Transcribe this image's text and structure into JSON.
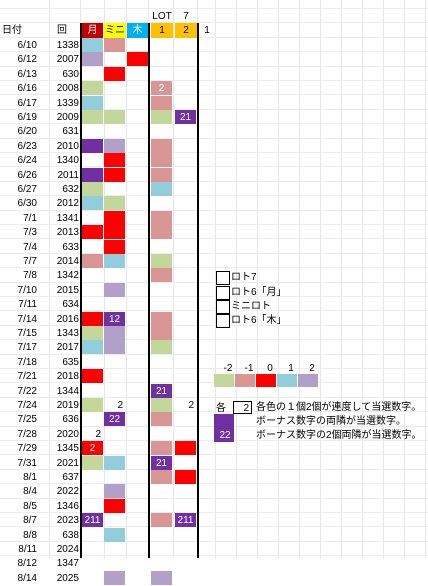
{
  "header": {
    "lot_label": "LOT",
    "lot_value": "7",
    "date_col": "日付",
    "round_col": "回",
    "cols": [
      {
        "label": "月",
        "bg": "#c00000",
        "fg": "#ffffff"
      },
      {
        "label": "ミニ",
        "bg": "#ffff00",
        "fg": "#000000"
      },
      {
        "label": "木",
        "bg": "#00b0f0",
        "fg": "#ffffff"
      },
      {
        "label": "1",
        "bg": "#ffc000",
        "fg": "#000000"
      },
      {
        "label": "2",
        "bg": "#ffc000",
        "fg": "#000000"
      }
    ],
    "extra": "1"
  },
  "palette": {
    "-2": "#c4d79b",
    "-1": "#da9694",
    "0": "#ff0000",
    "1": "#92cddc",
    "2": "#b1a0c7",
    "22": "#7030a0",
    "p": "#7030a0"
  },
  "rows": [
    {
      "date": "6/10",
      "num": "1338",
      "c": [
        [
          "1",
          ""
        ],
        [
          "-1",
          ""
        ],
        [
          "",
          ""
        ],
        [
          "",
          ""
        ],
        [
          "",
          ""
        ]
      ]
    },
    {
      "date": "6/12",
      "num": "2007",
      "c": [
        [
          "2",
          ""
        ],
        [
          "",
          ""
        ],
        [
          "0",
          ""
        ],
        [
          "",
          ""
        ],
        [
          "",
          ""
        ]
      ]
    },
    {
      "date": "6/13",
      "num": "630",
      "c": [
        [
          "",
          ""
        ],
        [
          "0",
          ""
        ],
        [
          "",
          ""
        ],
        [
          "",
          ""
        ],
        [
          "",
          ""
        ]
      ]
    },
    {
      "date": "6/16",
      "num": "2008",
      "c": [
        [
          "-2",
          ""
        ],
        [
          "",
          ""
        ],
        [
          "",
          ""
        ],
        [
          "-1",
          "2"
        ],
        [
          "",
          ""
        ]
      ]
    },
    {
      "date": "6/17",
      "num": "1339",
      "c": [
        [
          "1",
          ""
        ],
        [
          "",
          ""
        ],
        [
          "",
          ""
        ],
        [
          "-1",
          ""
        ],
        [
          "",
          ""
        ]
      ]
    },
    {
      "date": "6/19",
      "num": "2009",
      "c": [
        [
          "-2",
          ""
        ],
        [
          "-2",
          ""
        ],
        [
          "",
          ""
        ],
        [
          "-2",
          ""
        ],
        [
          "22",
          "21"
        ]
      ]
    },
    {
      "date": "6/20",
      "num": "631",
      "c": [
        [
          "",
          ""
        ],
        [
          "",
          ""
        ],
        [
          "",
          ""
        ],
        [
          "",
          ""
        ],
        [
          "",
          ""
        ]
      ]
    },
    {
      "date": "6/23",
      "num": "2010",
      "c": [
        [
          "22",
          ""
        ],
        [
          "2",
          ""
        ],
        [
          "",
          ""
        ],
        [
          "-1",
          ""
        ],
        [
          "",
          ""
        ]
      ]
    },
    {
      "date": "6/24",
      "num": "1340",
      "c": [
        [
          "",
          ""
        ],
        [
          "0",
          ""
        ],
        [
          "",
          ""
        ],
        [
          "-1",
          ""
        ],
        [
          "",
          ""
        ]
      ]
    },
    {
      "date": "6/26",
      "num": "2011",
      "c": [
        [
          "22",
          ""
        ],
        [
          "0",
          ""
        ],
        [
          "",
          ""
        ],
        [
          "-1",
          ""
        ],
        [
          "",
          ""
        ]
      ]
    },
    {
      "date": "6/27",
      "num": "632",
      "c": [
        [
          "-2",
          ""
        ],
        [
          "",
          ""
        ],
        [
          "",
          ""
        ],
        [
          "1",
          ""
        ],
        [
          "",
          ""
        ]
      ]
    },
    {
      "date": "6/30",
      "num": "2012",
      "c": [
        [
          "1",
          ""
        ],
        [
          "-2",
          ""
        ],
        [
          "",
          ""
        ],
        [
          "",
          ""
        ],
        [
          "",
          ""
        ]
      ]
    },
    {
      "date": "7/1",
      "num": "1341",
      "c": [
        [
          "",
          ""
        ],
        [
          "0",
          ""
        ],
        [
          "",
          ""
        ],
        [
          "-1",
          ""
        ],
        [
          "",
          ""
        ]
      ]
    },
    {
      "date": "7/3",
      "num": "2013",
      "c": [
        [
          "0",
          ""
        ],
        [
          "0",
          ""
        ],
        [
          "",
          ""
        ],
        [
          "-1",
          ""
        ],
        [
          "",
          ""
        ]
      ]
    },
    {
      "date": "7/4",
      "num": "633",
      "c": [
        [
          "",
          ""
        ],
        [
          "0",
          ""
        ],
        [
          "",
          ""
        ],
        [
          "",
          ""
        ],
        [
          "",
          ""
        ]
      ]
    },
    {
      "date": "7/7",
      "num": "2014",
      "c": [
        [
          "-1",
          ""
        ],
        [
          "1",
          ""
        ],
        [
          "",
          ""
        ],
        [
          "-2",
          ""
        ],
        [
          "",
          ""
        ]
      ]
    },
    {
      "date": "7/8",
      "num": "1342",
      "c": [
        [
          "",
          ""
        ],
        [
          "",
          ""
        ],
        [
          "",
          ""
        ],
        [
          "-1",
          ""
        ],
        [
          "",
          ""
        ]
      ]
    },
    {
      "date": "7/10",
      "num": "2015",
      "c": [
        [
          "",
          ""
        ],
        [
          "2",
          ""
        ],
        [
          "",
          ""
        ],
        [
          "",
          ""
        ],
        [
          "",
          ""
        ]
      ]
    },
    {
      "date": "7/11",
      "num": "634",
      "c": [
        [
          "",
          ""
        ],
        [
          "",
          ""
        ],
        [
          "",
          ""
        ],
        [
          "",
          ""
        ],
        [
          "",
          ""
        ]
      ]
    },
    {
      "date": "7/14",
      "num": "2016",
      "c": [
        [
          "0",
          ""
        ],
        [
          "22",
          "12"
        ],
        [
          "",
          ""
        ],
        [
          "-1",
          ""
        ],
        [
          "",
          ""
        ]
      ]
    },
    {
      "date": "7/15",
      "num": "1343",
      "c": [
        [
          "-2",
          ""
        ],
        [
          "2",
          ""
        ],
        [
          "",
          ""
        ],
        [
          "-1",
          ""
        ],
        [
          "",
          ""
        ]
      ]
    },
    {
      "date": "7/17",
      "num": "2017",
      "c": [
        [
          "1",
          ""
        ],
        [
          "2",
          ""
        ],
        [
          "",
          ""
        ],
        [
          "-2",
          ""
        ],
        [
          "",
          ""
        ]
      ]
    },
    {
      "date": "7/18",
      "num": "635",
      "c": [
        [
          "",
          ""
        ],
        [
          "",
          ""
        ],
        [
          "",
          ""
        ],
        [
          "",
          ""
        ],
        [
          "",
          ""
        ]
      ]
    },
    {
      "date": "7/21",
      "num": "2018",
      "c": [
        [
          "0",
          ""
        ],
        [
          "",
          ""
        ],
        [
          "",
          ""
        ],
        [
          "",
          ""
        ],
        [
          "",
          ""
        ]
      ]
    },
    {
      "date": "7/22",
      "num": "1344",
      "c": [
        [
          "",
          ""
        ],
        [
          "",
          ""
        ],
        [
          "",
          ""
        ],
        [
          "22",
          "21"
        ],
        [
          "",
          ""
        ]
      ]
    },
    {
      "date": "7/24",
      "num": "2019",
      "c": [
        [
          "-2",
          ""
        ],
        [
          "",
          "2"
        ],
        [
          "",
          ""
        ],
        [
          "-2",
          ""
        ],
        [
          "",
          "2"
        ]
      ]
    },
    {
      "date": "7/25",
      "num": "636",
      "c": [
        [
          "",
          ""
        ],
        [
          "22",
          "22"
        ],
        [
          "",
          ""
        ],
        [
          "-1",
          ""
        ],
        [
          "",
          ""
        ]
      ]
    },
    {
      "date": "7/28",
      "num": "2020",
      "c": [
        [
          "",
          "2"
        ],
        [
          "",
          ""
        ],
        [
          "",
          ""
        ],
        [
          "",
          ""
        ],
        [
          "",
          ""
        ]
      ]
    },
    {
      "date": "7/29",
      "num": "1345",
      "c": [
        [
          "0",
          "2"
        ],
        [
          "",
          ""
        ],
        [
          "",
          ""
        ],
        [
          "-1",
          ""
        ],
        [
          "0",
          ""
        ]
      ]
    },
    {
      "date": "7/31",
      "num": "2021",
      "c": [
        [
          "-2",
          ""
        ],
        [
          "1",
          ""
        ],
        [
          "",
          ""
        ],
        [
          "22",
          "21"
        ],
        [
          "",
          ""
        ]
      ]
    },
    {
      "date": "8/1",
      "num": "637",
      "c": [
        [
          "",
          ""
        ],
        [
          "",
          ""
        ],
        [
          "",
          ""
        ],
        [
          "-1",
          ""
        ],
        [
          "0",
          ""
        ]
      ]
    },
    {
      "date": "8/4",
      "num": "2022",
      "c": [
        [
          "",
          ""
        ],
        [
          "2",
          ""
        ],
        [
          "",
          ""
        ],
        [
          "",
          ""
        ],
        [
          "",
          ""
        ]
      ]
    },
    {
      "date": "8/5",
      "num": "1346",
      "c": [
        [
          "",
          ""
        ],
        [
          "0",
          ""
        ],
        [
          "",
          ""
        ],
        [
          "",
          ""
        ],
        [
          "",
          ""
        ]
      ]
    },
    {
      "date": "8/7",
      "num": "2023",
      "c": [
        [
          "22",
          "211"
        ],
        [
          "",
          ""
        ],
        [
          "",
          ""
        ],
        [
          "-1",
          ""
        ],
        [
          "22",
          "211"
        ]
      ]
    },
    {
      "date": "8/8",
      "num": "638",
      "c": [
        [
          "",
          ""
        ],
        [
          "1",
          ""
        ],
        [
          "",
          ""
        ],
        [
          "",
          ""
        ],
        [
          "",
          ""
        ]
      ]
    },
    {
      "date": "8/11",
      "num": "2024",
      "c": [
        [
          "",
          ""
        ],
        [
          "",
          ""
        ],
        [
          "",
          ""
        ],
        [
          "",
          ""
        ],
        [
          "",
          ""
        ]
      ]
    },
    {
      "date": "8/12",
      "num": "1347",
      "c": [
        [
          "",
          ""
        ],
        [
          "",
          ""
        ],
        [
          "",
          ""
        ],
        [
          "",
          ""
        ],
        [
          "",
          ""
        ]
      ]
    },
    {
      "date": "8/14",
      "num": "2025",
      "c": [
        [
          "",
          ""
        ],
        [
          "2",
          ""
        ],
        [
          "",
          ""
        ],
        [
          "2",
          ""
        ],
        [
          "",
          ""
        ]
      ]
    }
  ],
  "legend_types": [
    "ロト7",
    "ロト6「月」",
    "ミニロト",
    "ロト6「木」"
  ],
  "scale": {
    "labels": [
      "-2",
      "-1",
      "0",
      "1",
      "2"
    ]
  },
  "notes": {
    "prefix": "各",
    "sample_value": "2",
    "line1": "各色の１個2個が連度して当選数字。",
    "line2": "ボーナス数字の両隣が当選数字。",
    "line3_value": "22",
    "line3": "ボーナス数字の2個両隣が当選数字。"
  }
}
